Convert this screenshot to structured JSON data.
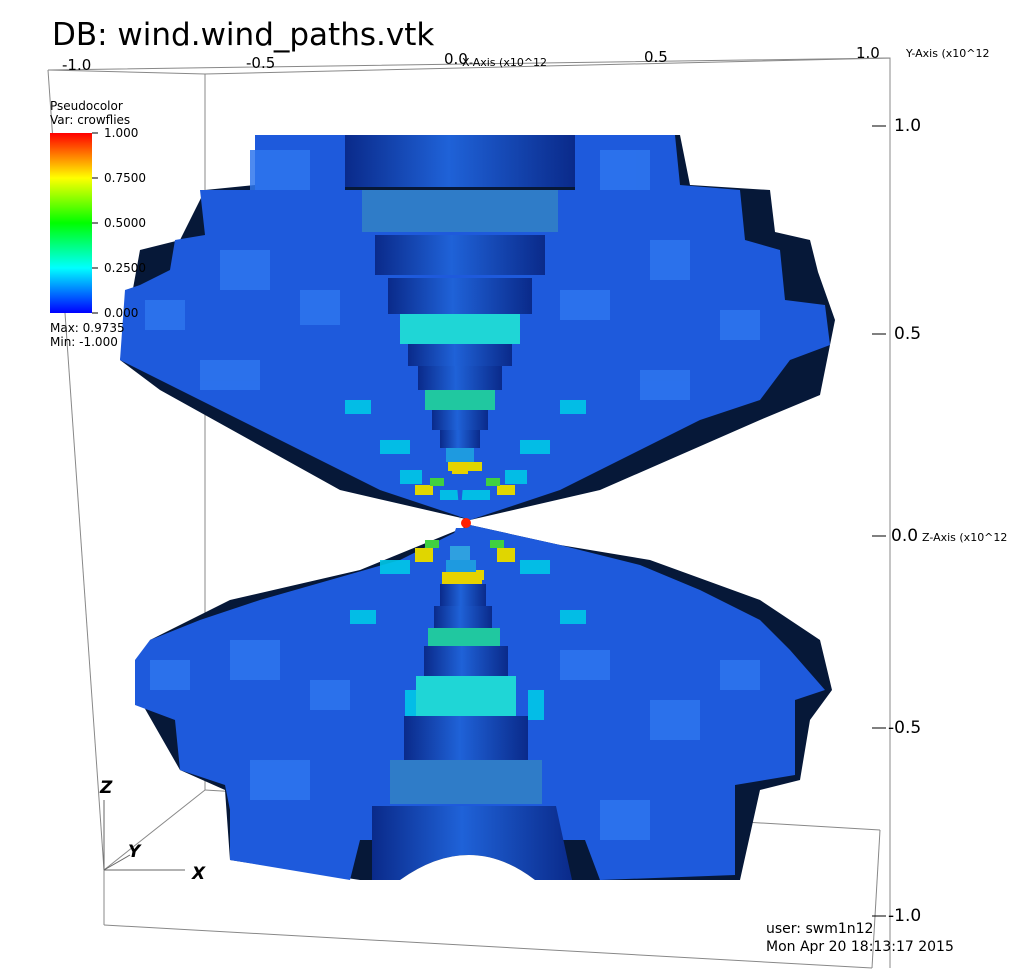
{
  "title": "DB: wind.wind_paths.vtk",
  "legend": {
    "plot_type": "Pseudocolor",
    "var_label": "Var: crowflies",
    "ticks": [
      "1.000",
      "0.7500",
      "0.5000",
      "0.2500",
      "0.000"
    ],
    "max_label": "Max:  0.9735",
    "min_label": "Min: -1.000",
    "colors": [
      "#ff0000",
      "#ffff00",
      "#00ff00",
      "#00ffff",
      "#0000ff"
    ]
  },
  "x_axis": {
    "ticks": [
      "-1.0",
      "-0.5",
      "0.0",
      "0.5",
      "1.0"
    ],
    "title": "X-Axis (x10^12"
  },
  "y_axis": {
    "title": "Y-Axis (x10^12"
  },
  "z_axis": {
    "ticks": [
      "1.0",
      "0.5",
      "0.0",
      "-0.5",
      "-1.0"
    ],
    "title": "Z-Axis (x10^12"
  },
  "triad": {
    "x": "X",
    "y": "Y",
    "z": "Z"
  },
  "footer": {
    "user": "user: swm1n12",
    "date": "Mon Apr 20 18:13:17 2015"
  },
  "colors": {
    "dark_blue": "#0a2a8a",
    "mid_blue": "#1e5adc",
    "cyan": "#00e6e6",
    "green_cyan": "#20d0a0",
    "yellow": "#e6d200",
    "green": "#40d040",
    "red": "#ff2000",
    "shadow": "#061838"
  }
}
